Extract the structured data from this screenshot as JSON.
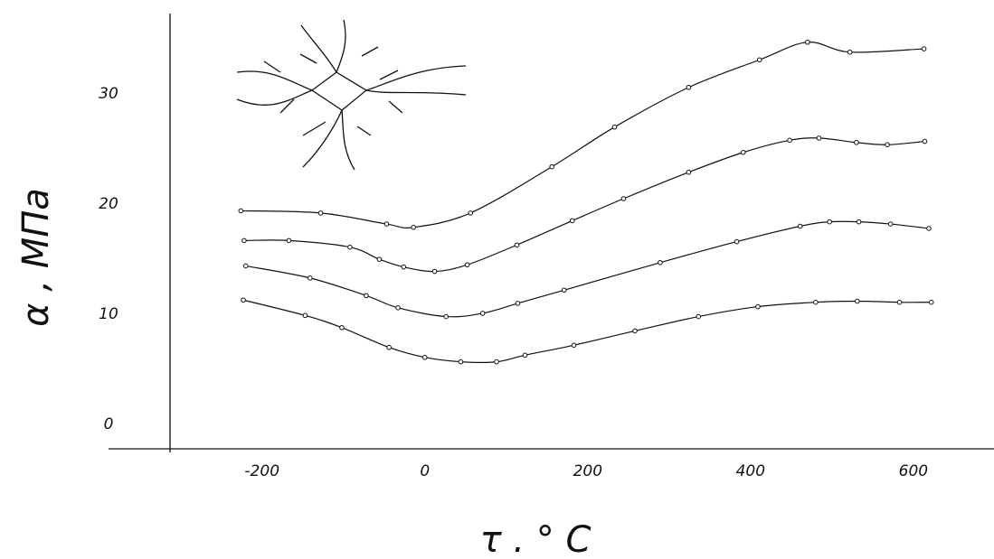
{
  "chart_data": {
    "type": "line",
    "y_label": "α ,  МПа",
    "x_label": "τ . ° C",
    "xlim": [
      -313,
      699
    ],
    "ylim": [
      -2.2,
      37.3
    ],
    "xticks": [
      -200,
      0,
      200,
      400,
      600
    ],
    "yticks": [
      0,
      10,
      20,
      30
    ],
    "grid": false,
    "color": "#111111",
    "series": [
      {
        "x": [
          -226,
          -128,
          -47,
          -14,
          56,
          156,
          233,
          324,
          411,
          470,
          522,
          613
        ],
        "values": [
          19.4,
          19.2,
          18.2,
          17.9,
          19.2,
          23.4,
          27.0,
          30.6,
          33.1,
          34.7,
          33.8,
          34.1
        ]
      },
      {
        "x": [
          -222,
          -167,
          -92,
          -56,
          -26,
          12,
          52,
          113,
          181,
          244,
          324,
          391,
          448,
          484,
          530,
          568,
          614
        ],
        "values": [
          16.7,
          16.7,
          16.1,
          15.0,
          14.3,
          13.9,
          14.5,
          16.3,
          18.5,
          20.5,
          22.9,
          24.7,
          25.8,
          26.0,
          25.6,
          25.4,
          25.7
        ]
      },
      {
        "x": [
          -220,
          -141,
          -72,
          -33,
          26,
          71,
          114,
          171,
          289,
          383,
          461,
          497,
          533,
          572,
          619
        ],
        "values": [
          14.4,
          13.3,
          11.7,
          10.6,
          9.8,
          10.1,
          11.0,
          12.2,
          14.7,
          16.6,
          18.0,
          18.4,
          18.4,
          18.2,
          17.8
        ]
      },
      {
        "x": [
          -223,
          -147,
          -102,
          -44,
          0,
          44,
          88,
          123,
          183,
          258,
          336,
          409,
          480,
          531,
          583,
          622
        ],
        "values": [
          11.3,
          9.9,
          8.8,
          7.0,
          6.1,
          5.7,
          5.7,
          6.3,
          7.2,
          8.5,
          9.8,
          10.7,
          11.1,
          11.2,
          11.1,
          11.1
        ]
      }
    ]
  }
}
